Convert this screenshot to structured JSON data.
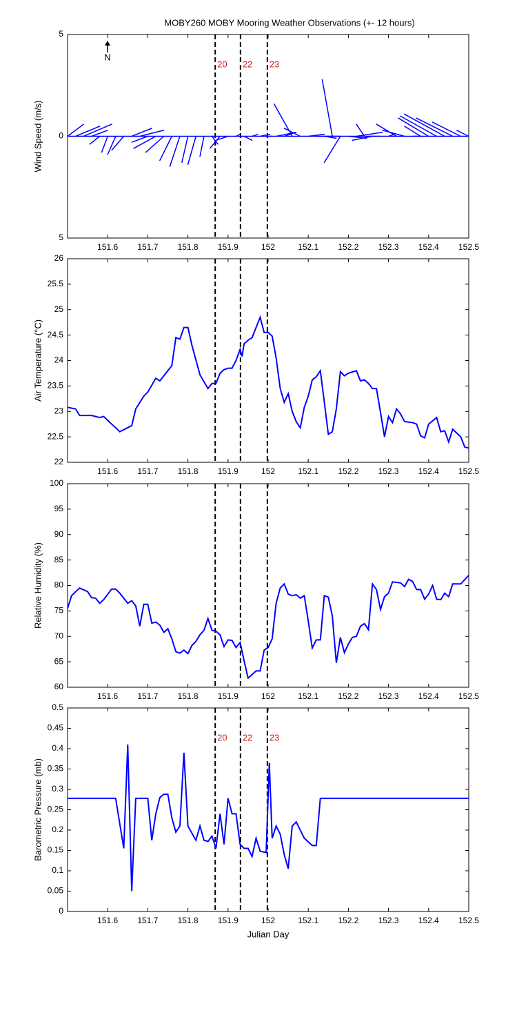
{
  "chart_data": [
    {
      "type": "quiver",
      "title": "MOBY260 MOBY Mooring Weather Observations (+- 12 hours)",
      "ylabel": "Wind Speed (m/s)",
      "annotation": "N",
      "xlim": [
        151.5,
        152.5
      ],
      "ylim": [
        -5,
        5
      ],
      "xticks": [
        151.6,
        151.7,
        151.8,
        151.9,
        152,
        152.1,
        152.2,
        152.3,
        152.4,
        152.5
      ],
      "yticks": [
        {
          "value": -5,
          "label": "5"
        },
        0,
        5
      ],
      "color": "#0000ff",
      "vlines": [
        151.868,
        151.931,
        151.998
      ],
      "vline_labels": [
        "20",
        "22",
        "23"
      ],
      "x": [
        151.5,
        151.52,
        151.54,
        151.56,
        151.58,
        151.6,
        151.62,
        151.64,
        151.66,
        151.68,
        151.7,
        151.72,
        151.74,
        151.76,
        151.78,
        151.8,
        151.82,
        151.84,
        151.86,
        151.88,
        151.9,
        151.92,
        151.94,
        151.96,
        151.98,
        152,
        152.02,
        152.04,
        152.06,
        152.08,
        152.1,
        152.12,
        152.14,
        152.16,
        152.18,
        152.2,
        152.22,
        152.24,
        152.26,
        152.28,
        152.3,
        152.32,
        152.34,
        152.36,
        152.38,
        152.4,
        152.42,
        152.44,
        152.46,
        152.48,
        152.5
      ],
      "u": [
        0.8,
        1.2,
        1.4,
        0.8,
        -0.5,
        -0.3,
        -0.4,
        -0.6,
        1.0,
        1.2,
        -0.8,
        -1.1,
        -0.9,
        -0.6,
        -0.5,
        -0.3,
        -0.4,
        -0.2,
        0.3,
        -0.5,
        -0.6,
        0.2,
        0.4,
        0.3,
        0.5,
        0.2,
        1.0,
        0.6,
        -0.9,
        -0.8,
        0.8,
        1.2,
        0.6,
        -0.5,
        -0.8,
        0.9,
        1.3,
        -0.4,
        -1.0,
        -0.5,
        0.3,
        -1.0,
        -1.1,
        0.5,
        -0.8,
        -1.5,
        -1.8,
        -2.0,
        -1.8,
        -1.4,
        -0.6
      ],
      "v": [
        0.6,
        0.5,
        0.6,
        0.3,
        -0.4,
        -0.8,
        -0.9,
        -0.7,
        0.4,
        0.3,
        -0.3,
        -0.6,
        -0.8,
        -1.2,
        -1.5,
        -1.3,
        -1.4,
        -1.0,
        -0.4,
        -0.6,
        -0.2,
        0.1,
        -0.2,
        0.1,
        0.1,
        0.0,
        0.2,
        0.2,
        1.6,
        0.4,
        0.1,
        0.0,
        -0.1,
        2.8,
        -1.3,
        -0.1,
        0.2,
        0.6,
        -0.2,
        0.0,
        0.1,
        0.6,
        0.3,
        0.0,
        0.5,
        0.9,
        1.0,
        1.1,
        0.9,
        0.7,
        0.3
      ]
    },
    {
      "type": "line",
      "ylabel": "Air Temperature (°C)",
      "xlim": [
        151.5,
        152.5
      ],
      "ylim": [
        22,
        26
      ],
      "xticks": [
        151.6,
        151.7,
        151.8,
        151.9,
        152,
        152.1,
        152.2,
        152.3,
        152.4,
        152.5
      ],
      "yticks": [
        22,
        22.5,
        23,
        23.5,
        24,
        24.5,
        25,
        25.5,
        26
      ],
      "color": "#0000ff",
      "vlines": [
        151.868,
        151.931,
        151.998
      ],
      "x": [
        151.5,
        151.52,
        151.53,
        151.56,
        151.58,
        151.59,
        151.61,
        151.62,
        151.63,
        151.66,
        151.67,
        151.69,
        151.7,
        151.72,
        151.73,
        151.76,
        151.77,
        151.78,
        151.79,
        151.8,
        151.81,
        151.83,
        151.85,
        151.86,
        151.87,
        151.88,
        151.89,
        151.9,
        151.91,
        151.92,
        151.93,
        151.935,
        151.94,
        151.95,
        151.96,
        151.98,
        151.99,
        152,
        152.01,
        152.02,
        152.03,
        152.04,
        152.05,
        152.06,
        152.07,
        152.08,
        152.09,
        152.1,
        152.11,
        152.12,
        152.13,
        152.14,
        152.15,
        152.16,
        152.17,
        152.18,
        152.19,
        152.2,
        152.22,
        152.23,
        152.24,
        152.25,
        152.26,
        152.27,
        152.28,
        152.29,
        152.3,
        152.31,
        152.32,
        152.33,
        152.34,
        152.36,
        152.37,
        152.38,
        152.39,
        152.4,
        152.42,
        152.43,
        152.44,
        152.45,
        152.46,
        152.48,
        152.49,
        152.5
      ],
      "values": [
        23.08,
        23.05,
        22.92,
        22.92,
        22.88,
        22.9,
        22.75,
        22.68,
        22.6,
        22.72,
        23.05,
        23.3,
        23.38,
        23.65,
        23.6,
        23.9,
        24.45,
        24.42,
        24.65,
        24.65,
        24.3,
        23.72,
        23.45,
        23.55,
        23.55,
        23.75,
        23.82,
        23.85,
        23.85,
        24.0,
        24.22,
        24.08,
        24.33,
        24.4,
        24.45,
        24.85,
        24.55,
        24.55,
        24.48,
        24.05,
        23.45,
        23.18,
        23.35,
        23.0,
        22.8,
        22.68,
        23.08,
        23.3,
        23.62,
        23.68,
        23.8,
        23.18,
        22.55,
        22.6,
        23.05,
        23.78,
        23.7,
        23.75,
        23.8,
        23.6,
        23.62,
        23.55,
        23.45,
        23.45,
        22.98,
        22.5,
        22.9,
        22.78,
        23.05,
        22.95,
        22.8,
        22.78,
        22.75,
        22.52,
        22.48,
        22.75,
        22.88,
        22.6,
        22.62,
        22.4,
        22.65,
        22.5,
        22.3,
        22.28
      ]
    },
    {
      "type": "line",
      "ylabel": "Relative Humidity (%)",
      "xlim": [
        151.5,
        152.5
      ],
      "ylim": [
        60,
        100
      ],
      "xticks": [
        151.6,
        151.7,
        151.8,
        151.9,
        152,
        152.1,
        152.2,
        152.3,
        152.4,
        152.5
      ],
      "yticks": [
        60,
        65,
        70,
        75,
        80,
        85,
        90,
        95,
        100
      ],
      "color": "#0000ff",
      "vlines": [
        151.868,
        151.931,
        151.998
      ],
      "x": [
        151.5,
        151.51,
        151.53,
        151.55,
        151.56,
        151.57,
        151.58,
        151.59,
        151.61,
        151.62,
        151.63,
        151.65,
        151.66,
        151.67,
        151.68,
        151.69,
        151.7,
        151.71,
        151.72,
        151.73,
        151.74,
        151.75,
        151.76,
        151.77,
        151.78,
        151.79,
        151.8,
        151.81,
        151.82,
        151.83,
        151.84,
        151.85,
        151.86,
        151.87,
        151.88,
        151.89,
        151.9,
        151.91,
        151.92,
        151.93,
        151.94,
        151.95,
        151.96,
        151.97,
        151.98,
        151.99,
        152,
        152.01,
        152.02,
        152.03,
        152.04,
        152.05,
        152.06,
        152.07,
        152.08,
        152.09,
        152.1,
        152.11,
        152.12,
        152.13,
        152.14,
        152.15,
        152.16,
        152.17,
        152.18,
        152.19,
        152.2,
        152.21,
        152.22,
        152.23,
        152.24,
        152.25,
        152.26,
        152.27,
        152.28,
        152.29,
        152.3,
        152.31,
        152.33,
        152.34,
        152.35,
        152.36,
        152.37,
        152.38,
        152.39,
        152.4,
        152.41,
        152.42,
        152.43,
        152.44,
        152.45,
        152.46,
        152.48,
        152.5
      ],
      "values": [
        75.5,
        78,
        79.5,
        78.8,
        77.6,
        77.5,
        76.5,
        77.2,
        79.3,
        79.3,
        78.5,
        76.5,
        77,
        76,
        72,
        76.3,
        76.3,
        72.6,
        72.8,
        72.2,
        70.8,
        71.5,
        69.5,
        67,
        66.7,
        67.3,
        66.6,
        68.2,
        69,
        70.3,
        71.2,
        73.5,
        71.2,
        71,
        70.3,
        68,
        69.3,
        69.2,
        67.8,
        68.8,
        65.2,
        61.8,
        62.5,
        63.2,
        63.2,
        67.3,
        67.8,
        69.5,
        76.5,
        79.5,
        80.3,
        78.3,
        78,
        78.2,
        77.5,
        78,
        73,
        67.7,
        69.3,
        69.3,
        78,
        77.7,
        74,
        64.8,
        69.8,
        66.8,
        68.5,
        69.8,
        70,
        72,
        72.5,
        71.3,
        80.3,
        79.2,
        75.3,
        77.8,
        78.5,
        80.7,
        80.5,
        79.8,
        81.2,
        80.8,
        79.2,
        79.2,
        77.3,
        78.3,
        80,
        77.3,
        77.2,
        78.5,
        77.8,
        80.3,
        80.3,
        82
      ]
    },
    {
      "type": "line",
      "ylabel": "Barometric Pressure (mb)",
      "xlabel": "Julian Day",
      "xlim": [
        151.5,
        152.5
      ],
      "ylim": [
        0,
        0.5
      ],
      "xticks": [
        151.6,
        151.7,
        151.8,
        151.9,
        152,
        152.1,
        152.2,
        152.3,
        152.4,
        152.5
      ],
      "yticks": [
        0,
        0.05,
        0.1,
        0.15,
        0.2,
        0.25,
        0.3,
        0.35,
        0.4,
        0.45,
        0.5
      ],
      "color": "#0000ff",
      "vlines": [
        151.868,
        151.931,
        151.998
      ],
      "vline_labels": [
        "20",
        "22",
        "23"
      ],
      "x": [
        151.5,
        151.62,
        151.64,
        151.65,
        151.66,
        151.67,
        151.7,
        151.71,
        151.72,
        151.73,
        151.74,
        151.75,
        151.76,
        151.77,
        151.78,
        151.79,
        151.8,
        151.82,
        151.83,
        151.84,
        151.85,
        151.86,
        151.87,
        151.88,
        151.89,
        151.9,
        151.91,
        151.92,
        151.93,
        151.94,
        151.95,
        151.96,
        151.97,
        151.98,
        151.995,
        152.003,
        152.01,
        152.02,
        152.03,
        152.04,
        152.05,
        152.06,
        152.07,
        152.09,
        152.11,
        152.12,
        152.13,
        152.5
      ],
      "values": [
        0.278,
        0.278,
        0.155,
        0.41,
        0.05,
        0.278,
        0.278,
        0.175,
        0.24,
        0.28,
        0.288,
        0.288,
        0.23,
        0.195,
        0.21,
        0.39,
        0.21,
        0.175,
        0.21,
        0.175,
        0.172,
        0.185,
        0.155,
        0.24,
        0.165,
        0.278,
        0.24,
        0.24,
        0.165,
        0.155,
        0.155,
        0.135,
        0.18,
        0.148,
        0.145,
        0.365,
        0.18,
        0.21,
        0.19,
        0.14,
        0.105,
        0.21,
        0.22,
        0.18,
        0.162,
        0.162,
        0.278,
        0.278
      ]
    }
  ]
}
